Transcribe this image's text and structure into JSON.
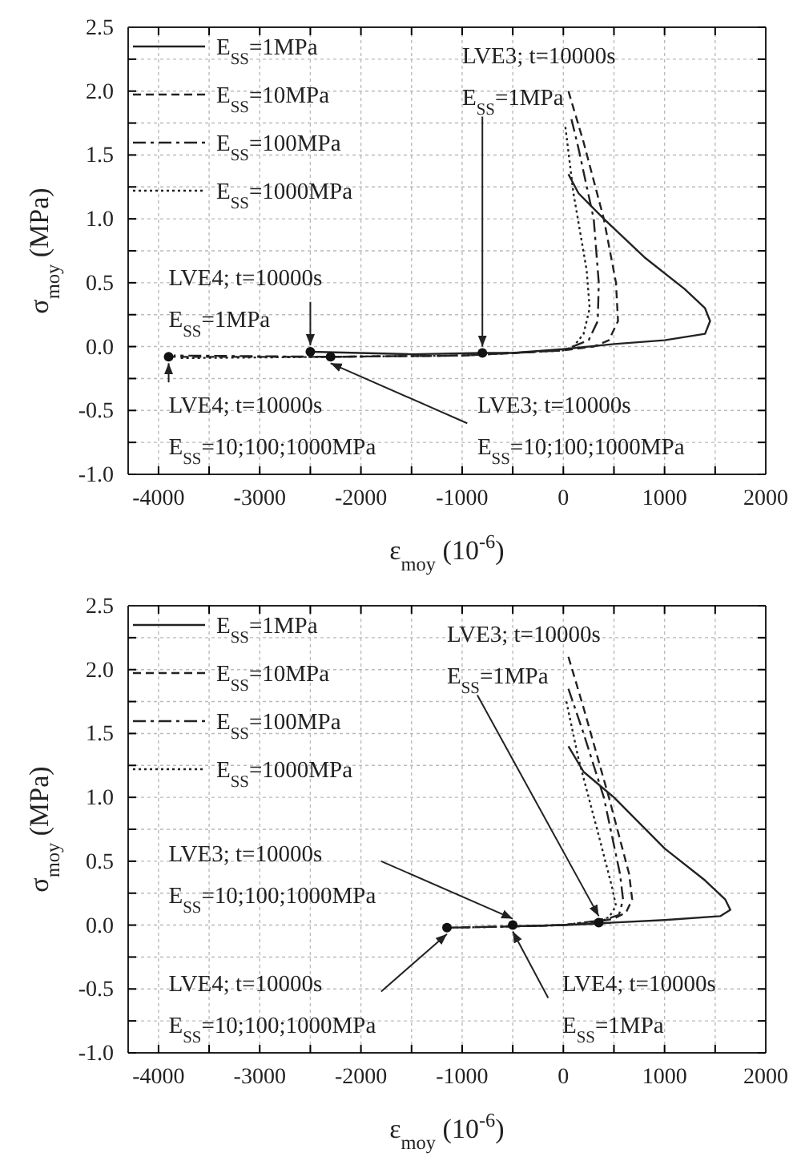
{
  "chart_data": [
    {
      "type": "line",
      "xlabel": "ε$_{moy}$ (10$^{-6}$)",
      "ylabel": "σ$_{moy}$ (MPa)",
      "xlim": [
        -4300,
        2000
      ],
      "ylim": [
        -1,
        2.5
      ],
      "xticks": [
        -4000,
        {
          "value": -3500,
          "label": null
        },
        -3000,
        {
          "value": -2500,
          "label": null
        },
        -2000,
        {
          "value": -1500,
          "label": null
        },
        -1000,
        {
          "value": -500,
          "label": null
        },
        0,
        {
          "value": 500,
          "label": null
        },
        1000,
        {
          "value": 1500,
          "label": null
        },
        2000
      ],
      "yticks": [
        {
          "value": -1,
          "label": "-1.0"
        },
        {
          "value": -0.75,
          "label": null
        },
        -0.5,
        {
          "value": -0.25,
          "label": null
        },
        {
          "value": 0,
          "label": "0.0"
        },
        {
          "value": 0.25,
          "label": null
        },
        0.5,
        {
          "value": 0.75,
          "label": null
        },
        {
          "value": 1,
          "label": "1.0"
        },
        {
          "value": 1.25,
          "label": null
        },
        1.5,
        {
          "value": 1.75,
          "label": null
        },
        {
          "value": 2,
          "label": "2.0"
        },
        {
          "value": 2.25,
          "label": null
        },
        2.5
      ],
      "grid": true,
      "legend": "top left",
      "series": [
        {
          "name": "E$_{SS}$=1MPa",
          "color": "#222222",
          "line_style": "solid",
          "x": [
            50,
            150,
            400,
            800,
            1200,
            1400,
            1450,
            1400,
            1000,
            500,
            0,
            -500,
            -800,
            -1500,
            -2500
          ],
          "values": [
            1.35,
            1.2,
            1.0,
            0.7,
            0.45,
            0.3,
            0.2,
            0.1,
            0.05,
            0.02,
            -0.02,
            -0.05,
            -0.05,
            -0.06,
            -0.04
          ]
        },
        {
          "name": "E$_{SS}$=10MPa",
          "color": "#222222",
          "line_style": "dashed",
          "x": [
            50,
            200,
            400,
            520,
            540,
            450,
            300,
            0,
            -1000,
            -2300,
            -3900
          ],
          "values": [
            2.0,
            1.6,
            1.0,
            0.5,
            0.2,
            0.05,
            0.0,
            -0.03,
            -0.07,
            -0.08,
            -0.08
          ]
        },
        {
          "name": "E$_{SS}$=100MPa",
          "color": "#222222",
          "line_style": "dashdot",
          "x": [
            80,
            150,
            300,
            350,
            340,
            250,
            0,
            -1000,
            -2300,
            -3850
          ],
          "values": [
            1.78,
            1.55,
            1.0,
            0.5,
            0.2,
            0.05,
            -0.03,
            -0.07,
            -0.08,
            -0.07
          ]
        },
        {
          "name": "E$_{SS}$=1000MPa",
          "color": "#222222",
          "line_style": "dotted",
          "x": [
            20,
            100,
            230,
            260,
            200,
            100,
            0,
            -1000,
            -2300,
            -3800
          ],
          "values": [
            1.72,
            1.2,
            0.6,
            0.3,
            0.1,
            0.0,
            -0.03,
            -0.07,
            -0.08,
            -0.09
          ]
        },
        {
          "type": "scatter",
          "color": "#111111",
          "x": [
            -800,
            -2500,
            -3900,
            -2300
          ],
          "values": [
            -0.05,
            -0.04,
            -0.08,
            -0.08
          ]
        }
      ],
      "annotations": [
        {
          "text": "LVE3; t=10000s\nE$_{SS}$=1MPa",
          "x": -800,
          "y": -0.05
        },
        {
          "text": "LVE4; t=10000s\nE$_{SS}$=1MPa",
          "x": -2500,
          "y": -0.04
        },
        {
          "text": "LVE4; t=10000s\nE$_{SS}$=10;100;1000MPa",
          "x": -3900,
          "y": -0.08
        },
        {
          "text": "LVE3; t=10000s\nE$_{SS}$=10;100;1000MPa",
          "x": -2300,
          "y": -0.08
        }
      ]
    },
    {
      "type": "line",
      "xlabel": "ε$_{moy}$ (10$^{-6}$)",
      "ylabel": "σ$_{moy}$ (MPa)",
      "xlim": [
        -4300,
        2000
      ],
      "ylim": [
        -1,
        2.5
      ],
      "xticks": [
        -4000,
        {
          "value": -3500,
          "label": null
        },
        -3000,
        {
          "value": -2500,
          "label": null
        },
        -2000,
        {
          "value": -1500,
          "label": null
        },
        -1000,
        {
          "value": -500,
          "label": null
        },
        0,
        {
          "value": 500,
          "label": null
        },
        1000,
        {
          "value": 1500,
          "label": null
        },
        2000
      ],
      "yticks": [
        {
          "value": -1,
          "label": "-1.0"
        },
        {
          "value": -0.75,
          "label": null
        },
        -0.5,
        {
          "value": -0.25,
          "label": null
        },
        {
          "value": 0,
          "label": "0.0"
        },
        {
          "value": 0.25,
          "label": null
        },
        0.5,
        {
          "value": 0.75,
          "label": null
        },
        {
          "value": 1,
          "label": "1.0"
        },
        {
          "value": 1.25,
          "label": null
        },
        1.5,
        {
          "value": 1.75,
          "label": null
        },
        {
          "value": 2,
          "label": "2.0"
        },
        {
          "value": 2.25,
          "label": null
        },
        2.5
      ],
      "grid": true,
      "legend": "top left",
      "series": [
        {
          "name": "E$_{SS}$=1MPa",
          "color": "#222222",
          "line_style": "solid",
          "x": [
            50,
            200,
            500,
            1000,
            1400,
            1600,
            1650,
            1550,
            1000,
            500,
            300,
            0,
            -500
          ],
          "values": [
            1.4,
            1.2,
            1.0,
            0.6,
            0.35,
            0.2,
            0.12,
            0.07,
            0.04,
            0.02,
            0.01,
            0.0,
            -0.01
          ]
        },
        {
          "name": "E$_{SS}$=10MPa",
          "color": "#222222",
          "line_style": "dashed",
          "x": [
            50,
            200,
            450,
            650,
            680,
            620,
            500,
            300,
            0,
            -500,
            -1150
          ],
          "values": [
            2.1,
            1.7,
            1.0,
            0.4,
            0.2,
            0.1,
            0.05,
            0.02,
            0.0,
            -0.01,
            -0.02
          ]
        },
        {
          "name": "E$_{SS}$=100MPa",
          "color": "#222222",
          "line_style": "dashdot",
          "x": [
            50,
            200,
            400,
            560,
            590,
            550,
            400,
            0,
            -500,
            -1100
          ],
          "values": [
            1.85,
            1.5,
            1.0,
            0.4,
            0.2,
            0.08,
            0.04,
            0.0,
            -0.01,
            -0.02
          ]
        },
        {
          "name": "E$_{SS}$=1000MPa",
          "color": "#222222",
          "line_style": "dotted",
          "x": [
            30,
            150,
            350,
            480,
            520,
            450,
            300,
            0,
            -500,
            -1050
          ],
          "values": [
            1.75,
            1.3,
            0.7,
            0.3,
            0.15,
            0.06,
            0.03,
            0.0,
            -0.01,
            -0.02
          ]
        },
        {
          "type": "scatter",
          "color": "#111111",
          "x": [
            350,
            -500,
            -1150
          ],
          "values": [
            0.02,
            0.0,
            -0.02
          ]
        }
      ],
      "annotations": [
        {
          "text": "LVE3; t=10000s\nE$_{SS}$=1MPa",
          "x": 350,
          "y": 0.02
        },
        {
          "text": "LVE3; t=10000s\nE$_{SS}$=10;100;1000MPa",
          "x": -500,
          "y": 0.0
        },
        {
          "text": "LVE4; t=10000s\nE$_{SS}$=10;100;1000MPa",
          "x": -1150,
          "y": -0.02
        },
        {
          "text": "LVE4; t=10000s\nE$_{SS}$=1MPa",
          "x": -500,
          "y": 0.0
        }
      ]
    }
  ]
}
